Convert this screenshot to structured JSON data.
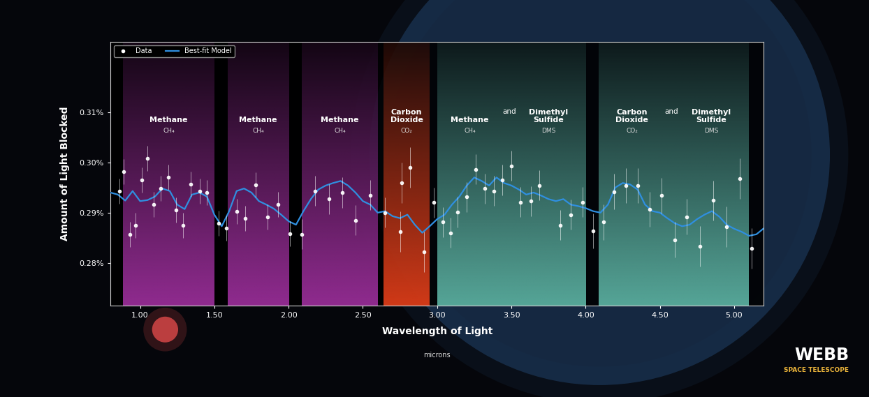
{
  "chart_data": {
    "type": "scatter",
    "x_label": "Wavelength of Light",
    "x_label_note": "microns",
    "y_label": "Amount of Light Blocked",
    "xlim": [
      0.8,
      5.2
    ],
    "ylim": [
      0.2715,
      0.324
    ],
    "xticks": [
      {
        "value": 1.0,
        "label": "1.00"
      },
      {
        "value": 1.5,
        "label": "1.50"
      },
      {
        "value": 2.0,
        "label": "2.00"
      },
      {
        "value": 2.5,
        "label": "2.50"
      },
      {
        "value": 3.0,
        "label": "3.00"
      },
      {
        "value": 3.5,
        "label": "3.50"
      },
      {
        "value": 4.0,
        "label": "4.00"
      },
      {
        "value": 4.5,
        "label": "4.50"
      },
      {
        "value": 5.0,
        "label": "5.00"
      }
    ],
    "yticks": [
      {
        "value": 0.28,
        "label": "0.28%"
      },
      {
        "value": 0.29,
        "label": "0.29%"
      },
      {
        "value": 0.3,
        "label": "0.30%"
      },
      {
        "value": 0.31,
        "label": "0.31%"
      }
    ],
    "grid": false,
    "legend": "upper left",
    "series": [
      {
        "name": "Data",
        "type": "scatter",
        "color": "#ffffff",
        "marker": "o",
        "x": [
          0.86,
          0.89,
          0.93,
          0.97,
          1.01,
          1.05,
          1.09,
          1.14,
          1.19,
          1.24,
          1.29,
          1.34,
          1.4,
          1.45,
          1.53,
          1.58,
          1.65,
          1.71,
          1.78,
          1.86,
          1.93,
          2.01,
          2.09,
          2.18,
          2.27,
          2.36,
          2.45,
          2.55,
          2.65,
          2.75,
          2.76,
          2.82,
          2.91,
          2.98,
          3.04,
          3.09,
          3.14,
          3.2,
          3.26,
          3.32,
          3.38,
          3.44,
          3.5,
          3.56,
          3.63,
          3.69,
          3.83,
          3.9,
          3.98,
          4.05,
          4.12,
          4.19,
          4.27,
          4.35,
          4.43,
          4.51,
          4.6,
          4.68,
          4.77,
          4.86,
          4.95,
          5.04,
          5.12
        ],
        "values": [
          0.2943,
          0.2981,
          0.2857,
          0.2875,
          0.2965,
          0.3008,
          0.2916,
          0.2948,
          0.2971,
          0.2905,
          0.2875,
          0.2956,
          0.2943,
          0.294,
          0.2879,
          0.2869,
          0.2903,
          0.2888,
          0.2955,
          0.2892,
          0.2917,
          0.2858,
          0.2857,
          0.2943,
          0.2927,
          0.294,
          0.2885,
          0.2935,
          0.29,
          0.2862,
          0.2959,
          0.299,
          0.2822,
          0.292,
          0.2881,
          0.286,
          0.2901,
          0.2931,
          0.2986,
          0.2948,
          0.2943,
          0.2965,
          0.2993,
          0.2921,
          0.2923,
          0.2954,
          0.2875,
          0.2896,
          0.2921,
          0.2864,
          0.2881,
          0.2942,
          0.2954,
          0.2954,
          0.2907,
          0.2934,
          0.2846,
          0.2892,
          0.2833,
          0.2924,
          0.2872,
          0.2968,
          0.2829
        ],
        "errors": [
          0.0025,
          0.0025,
          0.0025,
          0.0025,
          0.0025,
          0.0025,
          0.0025,
          0.0025,
          0.0025,
          0.0025,
          0.0025,
          0.0025,
          0.0025,
          0.0025,
          0.0025,
          0.0025,
          0.0025,
          0.0025,
          0.0025,
          0.0025,
          0.0025,
          0.0025,
          0.003,
          0.003,
          0.003,
          0.003,
          0.003,
          0.003,
          0.003,
          0.004,
          0.004,
          0.004,
          0.004,
          0.003,
          0.003,
          0.003,
          0.003,
          0.003,
          0.003,
          0.003,
          0.003,
          0.003,
          0.003,
          0.003,
          0.003,
          0.003,
          0.003,
          0.003,
          0.003,
          0.0035,
          0.0035,
          0.0035,
          0.0035,
          0.0035,
          0.0035,
          0.0035,
          0.0035,
          0.0035,
          0.004,
          0.004,
          0.004,
          0.004,
          0.004
        ]
      },
      {
        "name": "Best-fit Model",
        "type": "line",
        "color": "#2f8fe0",
        "line_style": "solid",
        "x": [
          0.8,
          0.85,
          0.9,
          0.95,
          1.0,
          1.05,
          1.1,
          1.15,
          1.2,
          1.25,
          1.3,
          1.35,
          1.4,
          1.45,
          1.5,
          1.55,
          1.6,
          1.65,
          1.7,
          1.75,
          1.8,
          1.85,
          1.9,
          1.95,
          2.0,
          2.05,
          2.1,
          2.15,
          2.2,
          2.25,
          2.3,
          2.35,
          2.4,
          2.45,
          2.5,
          2.55,
          2.6,
          2.65,
          2.7,
          2.75,
          2.8,
          2.85,
          2.9,
          2.95,
          3.0,
          3.05,
          3.1,
          3.15,
          3.2,
          3.25,
          3.3,
          3.35,
          3.4,
          3.45,
          3.5,
          3.55,
          3.6,
          3.65,
          3.7,
          3.75,
          3.8,
          3.85,
          3.9,
          3.95,
          4.0,
          4.05,
          4.1,
          4.15,
          4.2,
          4.25,
          4.3,
          4.35,
          4.4,
          4.45,
          4.5,
          4.55,
          4.6,
          4.65,
          4.7,
          4.75,
          4.8,
          4.85,
          4.9,
          4.95,
          5.0,
          5.05,
          5.1,
          5.15,
          5.2
        ],
        "values": [
          0.294,
          0.2936,
          0.2924,
          0.2943,
          0.2923,
          0.2925,
          0.2932,
          0.2948,
          0.2943,
          0.2916,
          0.2907,
          0.2936,
          0.294,
          0.2932,
          0.2896,
          0.2873,
          0.2903,
          0.2943,
          0.2948,
          0.294,
          0.2923,
          0.2916,
          0.2908,
          0.2896,
          0.2883,
          0.2876,
          0.2903,
          0.2927,
          0.2946,
          0.2954,
          0.2959,
          0.2963,
          0.2954,
          0.294,
          0.2923,
          0.2916,
          0.29,
          0.2903,
          0.2893,
          0.2889,
          0.2896,
          0.2876,
          0.286,
          0.2873,
          0.2887,
          0.2896,
          0.2916,
          0.2932,
          0.2954,
          0.297,
          0.2963,
          0.2954,
          0.297,
          0.2959,
          0.2954,
          0.2946,
          0.2936,
          0.294,
          0.2934,
          0.2927,
          0.2923,
          0.2927,
          0.2916,
          0.2913,
          0.2909,
          0.2903,
          0.29,
          0.2916,
          0.295,
          0.2959,
          0.2956,
          0.2946,
          0.2916,
          0.2903,
          0.29,
          0.2889,
          0.2879,
          0.2873,
          0.2876,
          0.2887,
          0.2896,
          0.2903,
          0.2892,
          0.2876,
          0.2868,
          0.2862,
          0.2854,
          0.2857,
          0.2869
        ]
      }
    ],
    "regions": [
      {
        "start": 0.885,
        "end": 1.5,
        "color": "#a0309f",
        "species": [
          {
            "name": "Methane",
            "formula": "CH₄"
          }
        ]
      },
      {
        "start": 1.59,
        "end": 2.0,
        "color": "#a0309f",
        "species": [
          {
            "name": "Methane",
            "formula": "CH₄"
          }
        ]
      },
      {
        "start": 2.09,
        "end": 2.6,
        "color": "#a0309f",
        "species": [
          {
            "name": "Methane",
            "formula": "CH₄"
          }
        ]
      },
      {
        "start": 2.64,
        "end": 2.95,
        "color": "#e8401a",
        "species": [
          {
            "name": "Carbon\nDioxide",
            "formula": "CO₂"
          }
        ]
      },
      {
        "start": 3.0,
        "end": 4.0,
        "color": "#5fb8a8",
        "joiner": "and",
        "species": [
          {
            "name": "Methane",
            "formula": "CH₄"
          },
          {
            "name": "Dimethyl\nSulfide",
            "formula": "DMS"
          }
        ]
      },
      {
        "start": 4.09,
        "end": 5.1,
        "color": "#5fb8a8",
        "joiner": "and",
        "species": [
          {
            "name": "Carbon\nDioxide",
            "formula": "CO₂"
          },
          {
            "name": "Dimethyl\nSulfide",
            "formula": "DMS"
          }
        ]
      }
    ],
    "credit": {
      "title": "WEBB",
      "subtitle": "SPACE TELESCOPE"
    }
  }
}
